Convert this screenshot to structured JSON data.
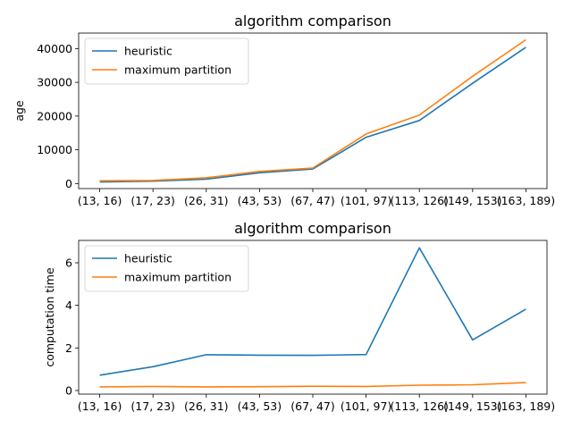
{
  "chart_data": [
    {
      "type": "line",
      "title": "algorithm comparison",
      "xlabel": "",
      "ylabel": "age",
      "categories": [
        "(13, 16)",
        "(17, 23)",
        "(26, 31)",
        "(43, 53)",
        "(67, 47)",
        "(101, 97)",
        "(113, 126)",
        "(149, 153)",
        "(163, 189)"
      ],
      "ylim": [
        -1500,
        44600
      ],
      "yticks": [
        0,
        10000,
        20000,
        30000,
        40000
      ],
      "legend": "upper-left",
      "grid": false,
      "series": [
        {
          "name": "heuristic",
          "color": "#1f77b4",
          "values": [
            450,
            700,
            1300,
            3200,
            4300,
            13700,
            18700,
            29700,
            40400
          ]
        },
        {
          "name": "maximum partition",
          "color": "#ff7f0e",
          "values": [
            800,
            900,
            1700,
            3600,
            4600,
            14700,
            20300,
            31800,
            42600
          ]
        }
      ]
    },
    {
      "type": "line",
      "title": "algorithm comparison",
      "xlabel": "",
      "ylabel": "computation time",
      "categories": [
        "(13, 16)",
        "(17, 23)",
        "(26, 31)",
        "(43, 53)",
        "(67, 47)",
        "(101, 97)",
        "(113, 126)",
        "(149, 153)",
        "(163, 189)"
      ],
      "ylim": [
        -0.17,
        7.05
      ],
      "yticks": [
        0,
        2,
        4,
        6
      ],
      "legend": "upper-left",
      "grid": false,
      "series": [
        {
          "name": "heuristic",
          "color": "#1f77b4",
          "values": [
            0.72,
            1.12,
            1.68,
            1.66,
            1.65,
            1.69,
            6.7,
            2.38,
            3.82
          ]
        },
        {
          "name": "maximum partition",
          "color": "#ff7f0e",
          "values": [
            0.17,
            0.19,
            0.17,
            0.18,
            0.2,
            0.19,
            0.25,
            0.27,
            0.37
          ]
        }
      ]
    }
  ]
}
